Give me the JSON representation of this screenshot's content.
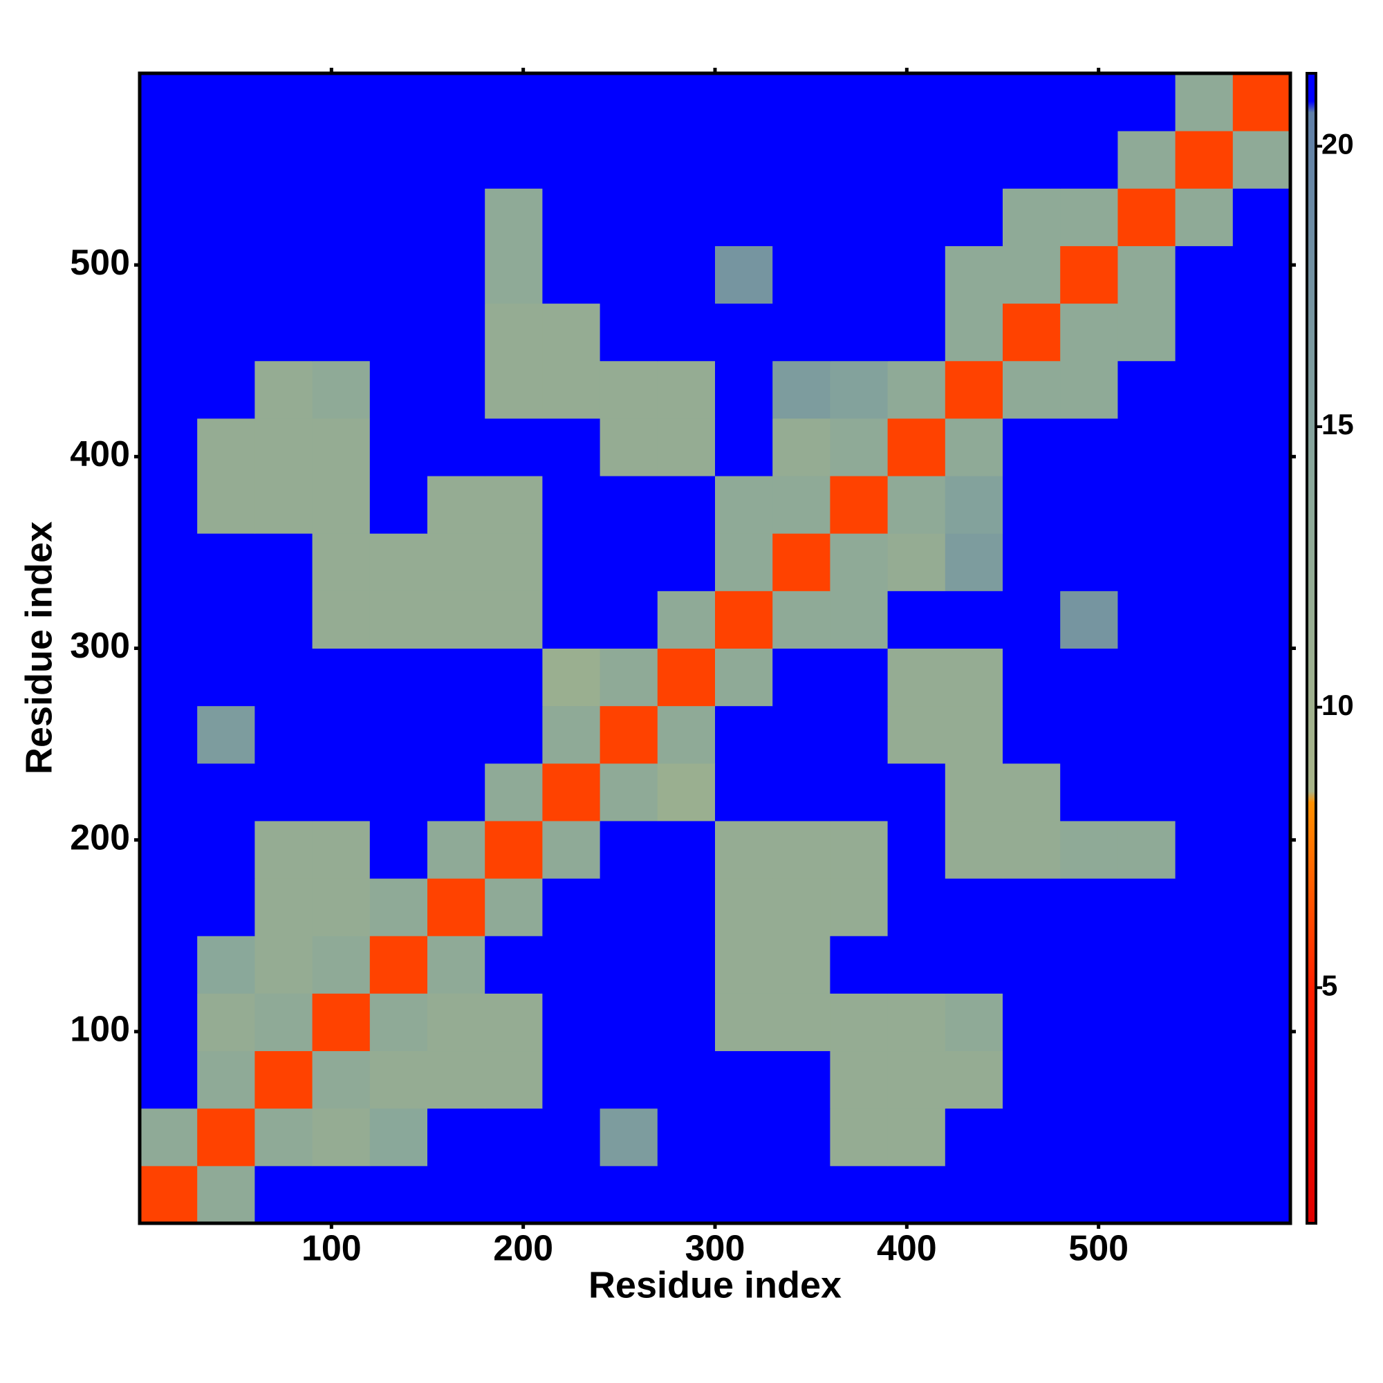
{
  "chart_data": {
    "type": "heatmap",
    "xlabel": "Residue index",
    "ylabel": "Residue index",
    "xbins": [
      0,
      30,
      60,
      90,
      120,
      150,
      180,
      210,
      240,
      270,
      300,
      330,
      360,
      390,
      420,
      450,
      480,
      510,
      540,
      570,
      600
    ],
    "ybins": [
      0,
      30,
      60,
      90,
      120,
      150,
      180,
      210,
      240,
      270,
      300,
      330,
      360,
      390,
      420,
      450,
      480,
      510,
      540,
      570,
      600
    ],
    "xlim": [
      0,
      600
    ],
    "ylim": [
      0,
      600
    ],
    "xticks": [
      100,
      200,
      300,
      400,
      500
    ],
    "yticks": [
      100,
      200,
      300,
      400,
      500
    ],
    "z": [
      [
        6,
        13,
        21,
        21,
        21,
        21,
        21,
        21,
        21,
        21,
        21,
        21,
        21,
        21,
        21,
        21,
        21,
        21,
        21,
        21
      ],
      [
        13,
        6,
        13,
        12,
        14,
        21,
        21,
        21,
        16,
        21,
        21,
        21,
        12,
        12,
        21,
        21,
        21,
        21,
        21,
        21
      ],
      [
        21,
        13,
        6,
        13,
        12,
        12,
        12,
        21,
        21,
        21,
        21,
        21,
        12,
        12,
        12,
        21,
        21,
        21,
        21,
        21
      ],
      [
        21,
        12,
        13,
        6,
        13,
        12,
        12,
        21,
        21,
        21,
        12,
        12,
        12,
        12,
        13,
        21,
        21,
        21,
        21,
        21
      ],
      [
        21,
        14,
        12,
        13,
        6,
        13,
        21,
        21,
        21,
        21,
        12,
        12,
        21,
        21,
        21,
        21,
        21,
        21,
        21,
        21
      ],
      [
        21,
        21,
        12,
        12,
        13,
        6,
        13,
        21,
        21,
        21,
        12,
        12,
        12,
        21,
        21,
        21,
        21,
        21,
        21,
        21
      ],
      [
        21,
        21,
        12,
        12,
        21,
        13,
        6,
        13,
        21,
        21,
        12,
        12,
        12,
        21,
        12,
        12,
        13,
        13,
        21,
        21
      ],
      [
        21,
        21,
        21,
        21,
        21,
        21,
        13,
        6,
        13,
        11,
        21,
        21,
        21,
        21,
        12,
        12,
        21,
        21,
        21,
        21
      ],
      [
        21,
        16,
        21,
        21,
        21,
        21,
        21,
        13,
        6,
        13,
        21,
        21,
        21,
        12,
        12,
        21,
        21,
        21,
        21,
        21
      ],
      [
        21,
        21,
        21,
        21,
        21,
        21,
        21,
        11,
        13,
        6,
        13,
        21,
        21,
        12,
        12,
        21,
        21,
        21,
        21,
        21
      ],
      [
        21,
        21,
        21,
        12,
        12,
        12,
        12,
        21,
        21,
        13,
        6,
        13,
        13,
        21,
        21,
        21,
        17,
        21,
        21,
        21
      ],
      [
        21,
        21,
        21,
        12,
        12,
        12,
        12,
        21,
        21,
        21,
        13,
        6,
        13,
        12,
        16,
        21,
        21,
        21,
        21,
        21
      ],
      [
        21,
        12,
        12,
        12,
        21,
        12,
        12,
        21,
        21,
        21,
        13,
        13,
        6,
        13,
        15,
        21,
        21,
        21,
        21,
        21
      ],
      [
        21,
        12,
        12,
        12,
        21,
        21,
        21,
        21,
        12,
        12,
        21,
        12,
        13,
        6,
        13,
        21,
        21,
        21,
        21,
        21
      ],
      [
        21,
        21,
        12,
        13,
        21,
        21,
        12,
        12,
        12,
        12,
        21,
        16,
        15,
        13,
        6,
        13,
        13,
        21,
        21,
        21
      ],
      [
        21,
        21,
        21,
        21,
        21,
        21,
        12,
        12,
        21,
        21,
        21,
        21,
        21,
        21,
        13,
        6,
        13,
        13,
        21,
        21
      ],
      [
        21,
        21,
        21,
        21,
        21,
        21,
        13,
        21,
        21,
        21,
        17,
        21,
        21,
        21,
        13,
        13,
        6,
        13,
        21,
        21
      ],
      [
        21,
        21,
        21,
        21,
        21,
        21,
        13,
        21,
        21,
        21,
        21,
        21,
        21,
        21,
        21,
        13,
        13,
        6,
        13,
        21
      ],
      [
        21,
        21,
        21,
        21,
        21,
        21,
        21,
        21,
        21,
        21,
        21,
        21,
        21,
        21,
        21,
        21,
        21,
        13,
        6,
        13
      ],
      [
        21,
        21,
        21,
        21,
        21,
        21,
        21,
        21,
        21,
        21,
        21,
        21,
        21,
        21,
        21,
        21,
        21,
        21,
        13,
        6
      ]
    ],
    "colorbar": {
      "lim": [
        0.8,
        21.3
      ],
      "ticks": [
        5,
        10,
        15,
        20
      ]
    },
    "colorscale": [
      [
        0.8,
        "#e00000"
      ],
      [
        5,
        "#ff2000"
      ],
      [
        8.3,
        "#ff9000"
      ],
      [
        8.5,
        "#a8b488"
      ],
      [
        14,
        "#8aa89a"
      ],
      [
        20.6,
        "#5f7fa8"
      ],
      [
        20.8,
        "#0000ff"
      ],
      [
        21.3,
        "#0000ff"
      ]
    ]
  }
}
